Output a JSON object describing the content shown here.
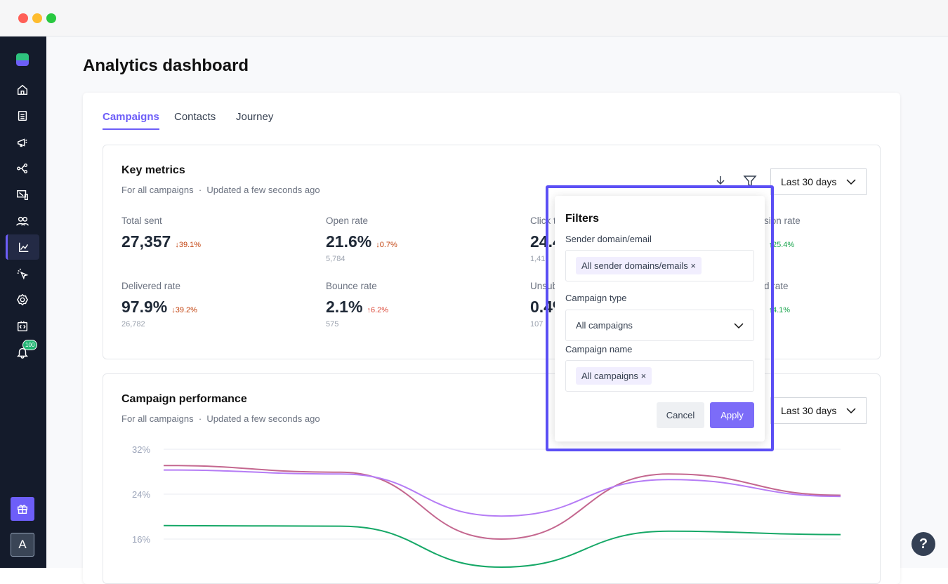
{
  "window": {
    "controls": [
      "#ff5f57",
      "#febc2e",
      "#28c840"
    ]
  },
  "sidebar": {
    "items": [
      {
        "icon": "home-icon"
      },
      {
        "icon": "list-icon"
      },
      {
        "icon": "megaphone-icon"
      },
      {
        "icon": "workflow-icon"
      },
      {
        "icon": "devices-icon"
      },
      {
        "icon": "contacts-icon"
      },
      {
        "icon": "analytics-icon",
        "active": true
      },
      {
        "icon": "cursor-click-icon"
      },
      {
        "icon": "gear-icon"
      },
      {
        "icon": "code-icon"
      },
      {
        "icon": "bell-icon",
        "badge": "100"
      }
    ],
    "avatar": "A"
  },
  "page": {
    "title": "Analytics dashboard"
  },
  "tabs": [
    {
      "label": "Campaigns",
      "active": true
    },
    {
      "label": "Contacts"
    },
    {
      "label": "Journey"
    }
  ],
  "key_metrics": {
    "title": "Key metrics",
    "subtitle": "For all campaigns",
    "updated": "Updated a few seconds ago",
    "range": "Last 30 days",
    "metrics": [
      {
        "label": "Total sent",
        "value": "27,357",
        "delta": "↓39.1%",
        "sub": ""
      },
      {
        "label": "Open rate",
        "value": "21.6%",
        "delta": "↓0.7%",
        "sub": "5,784"
      },
      {
        "label": "Click t",
        "value": "24.4",
        "delta": "",
        "sub": "1,41"
      },
      {
        "label": "sion rate",
        "value": "%",
        "delta": "↑25.4%",
        "sub": ""
      },
      {
        "label": "Delivered rate",
        "value": "97.9%",
        "delta": "↓39.2%",
        "sub": "26,782"
      },
      {
        "label": "Bounce rate",
        "value": "2.1%",
        "delta": "↑6.2%",
        "sub": "575"
      },
      {
        "label": "Unsub",
        "value": "0.4%",
        "delta": "",
        "sub": "107"
      },
      {
        "label": "d rate",
        "value": "%",
        "delta": "↑4.1%",
        "sub": ""
      }
    ]
  },
  "performance": {
    "title": "Campaign performance",
    "subtitle": "For all campaigns",
    "updated": "Updated a few seconds ago",
    "range": "Last 30 days"
  },
  "filters": {
    "title": "Filters",
    "sender_label": "Sender domain/email",
    "sender_chip": "All sender domains/emails",
    "type_label": "Campaign type",
    "type_value": "All campaigns",
    "name_label": "Campaign name",
    "name_chip": "All campaigns",
    "cancel": "Cancel",
    "apply": "Apply"
  },
  "chart_data": {
    "type": "line",
    "yticks": [
      "32%",
      "24%",
      "16%"
    ],
    "ylim": [
      10,
      32
    ],
    "grid": true,
    "x": [
      1,
      2,
      3,
      4,
      5
    ],
    "series": [
      {
        "color": "#c4678f",
        "values": [
          29.1,
          27.9,
          16,
          27.6,
          23.8
        ]
      },
      {
        "color": "#b57cf5",
        "values": [
          28.3,
          27.6,
          20.1,
          26.6,
          23.6
        ]
      },
      {
        "color": "#16a867",
        "values": [
          18.4,
          18.3,
          11,
          17.4,
          16.8
        ]
      }
    ]
  },
  "help": "?"
}
